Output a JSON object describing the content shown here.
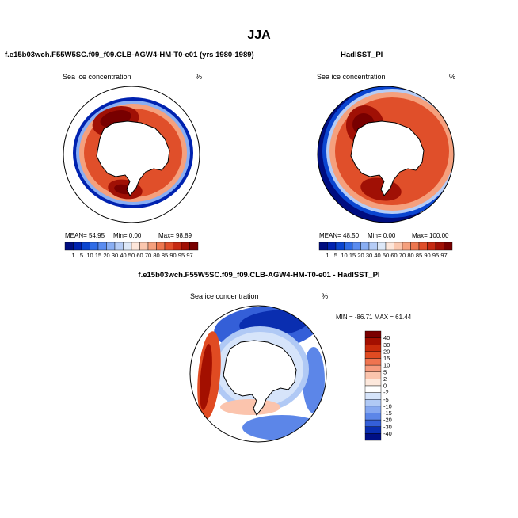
{
  "page_title": "JJA",
  "panels": {
    "left": {
      "title": "f.e15b03wch.F55W5SC.f09_f09.CLB-AGW4-HM-T0-e01 (yrs 1980-1989)",
      "variable": "Sea ice concentration",
      "units": "%",
      "stats": {
        "mean": "MEAN=  54.95",
        "min": "Min=    0.00",
        "max": "Max=   98.89"
      }
    },
    "right": {
      "title": "HadISST_PI",
      "variable": "Sea ice concentration",
      "units": "%",
      "stats": {
        "mean": "MEAN=  48.50",
        "min": "Min=    0.00",
        "max": "Max= 100.00"
      }
    },
    "diff": {
      "title": "f.e15b03wch.F55W5SC.f09_f09.CLB-AGW4-HM-T0-e01 - HadISST_PI",
      "variable": "Sea ice concentration",
      "units": "%",
      "stats": "MIN = -86.71  MAX =  61.44"
    }
  },
  "chart_data": [
    {
      "type": "heatmap",
      "projection": "south-polar-stereographic",
      "title": "f.e15b03wch.F55W5SC.f09_f09.CLB-AGW4-HM-T0-e01 (yrs 1980-1989)",
      "variable": "Sea ice concentration",
      "units": "%",
      "colorbar_levels": [
        "1",
        "5",
        "10",
        "15",
        "20",
        "30",
        "40",
        "50",
        "60",
        "70",
        "80",
        "85",
        "90",
        "95",
        "97"
      ],
      "colors": [
        "#000d80",
        "#0022b0",
        "#0a45d0",
        "#2f6ce6",
        "#5a8cf0",
        "#89aef3",
        "#b5ccf6",
        "#dde8f8",
        "#fde6da",
        "#fbc7ae",
        "#f5a07d",
        "#ed774f",
        "#e04f2a",
        "#c62a12",
        "#a01005",
        "#780000"
      ],
      "mean": 54.95,
      "min": 0.0,
      "max": 98.89
    },
    {
      "type": "heatmap",
      "projection": "south-polar-stereographic",
      "title": "HadISST_PI",
      "variable": "Sea ice concentration",
      "units": "%",
      "colorbar_levels": [
        "1",
        "5",
        "10",
        "15",
        "20",
        "30",
        "40",
        "50",
        "60",
        "70",
        "80",
        "85",
        "90",
        "95",
        "97"
      ],
      "colors": [
        "#000d80",
        "#0022b0",
        "#0a45d0",
        "#2f6ce6",
        "#5a8cf0",
        "#89aef3",
        "#b5ccf6",
        "#dde8f8",
        "#fde6da",
        "#fbc7ae",
        "#f5a07d",
        "#ed774f",
        "#e04f2a",
        "#c62a12",
        "#a01005",
        "#780000"
      ],
      "mean": 48.5,
      "min": 0.0,
      "max": 100.0
    },
    {
      "type": "heatmap",
      "projection": "south-polar-stereographic",
      "title": "f.e15b03wch.F55W5SC.f09_f09.CLB-AGW4-HM-T0-e01 - HadISST_PI",
      "variable": "Sea ice concentration",
      "units": "%",
      "colorbar_levels": [
        "40",
        "30",
        "20",
        "15",
        "10",
        "5",
        "2",
        "0",
        "-2",
        "-5",
        "-10",
        "-15",
        "-20",
        "-30",
        "-40"
      ],
      "colors": [
        "#7a0000",
        "#a30f00",
        "#c82b0b",
        "#e04b22",
        "#ef7450",
        "#f69b7e",
        "#fbc4ad",
        "#fde8dc",
        "#ffffff",
        "#d6e4fa",
        "#b0c9f5",
        "#86a8f0",
        "#5c86e8",
        "#345fd8",
        "#0a2eb0",
        "#000f85"
      ],
      "min": -86.71,
      "max": 61.44
    }
  ]
}
